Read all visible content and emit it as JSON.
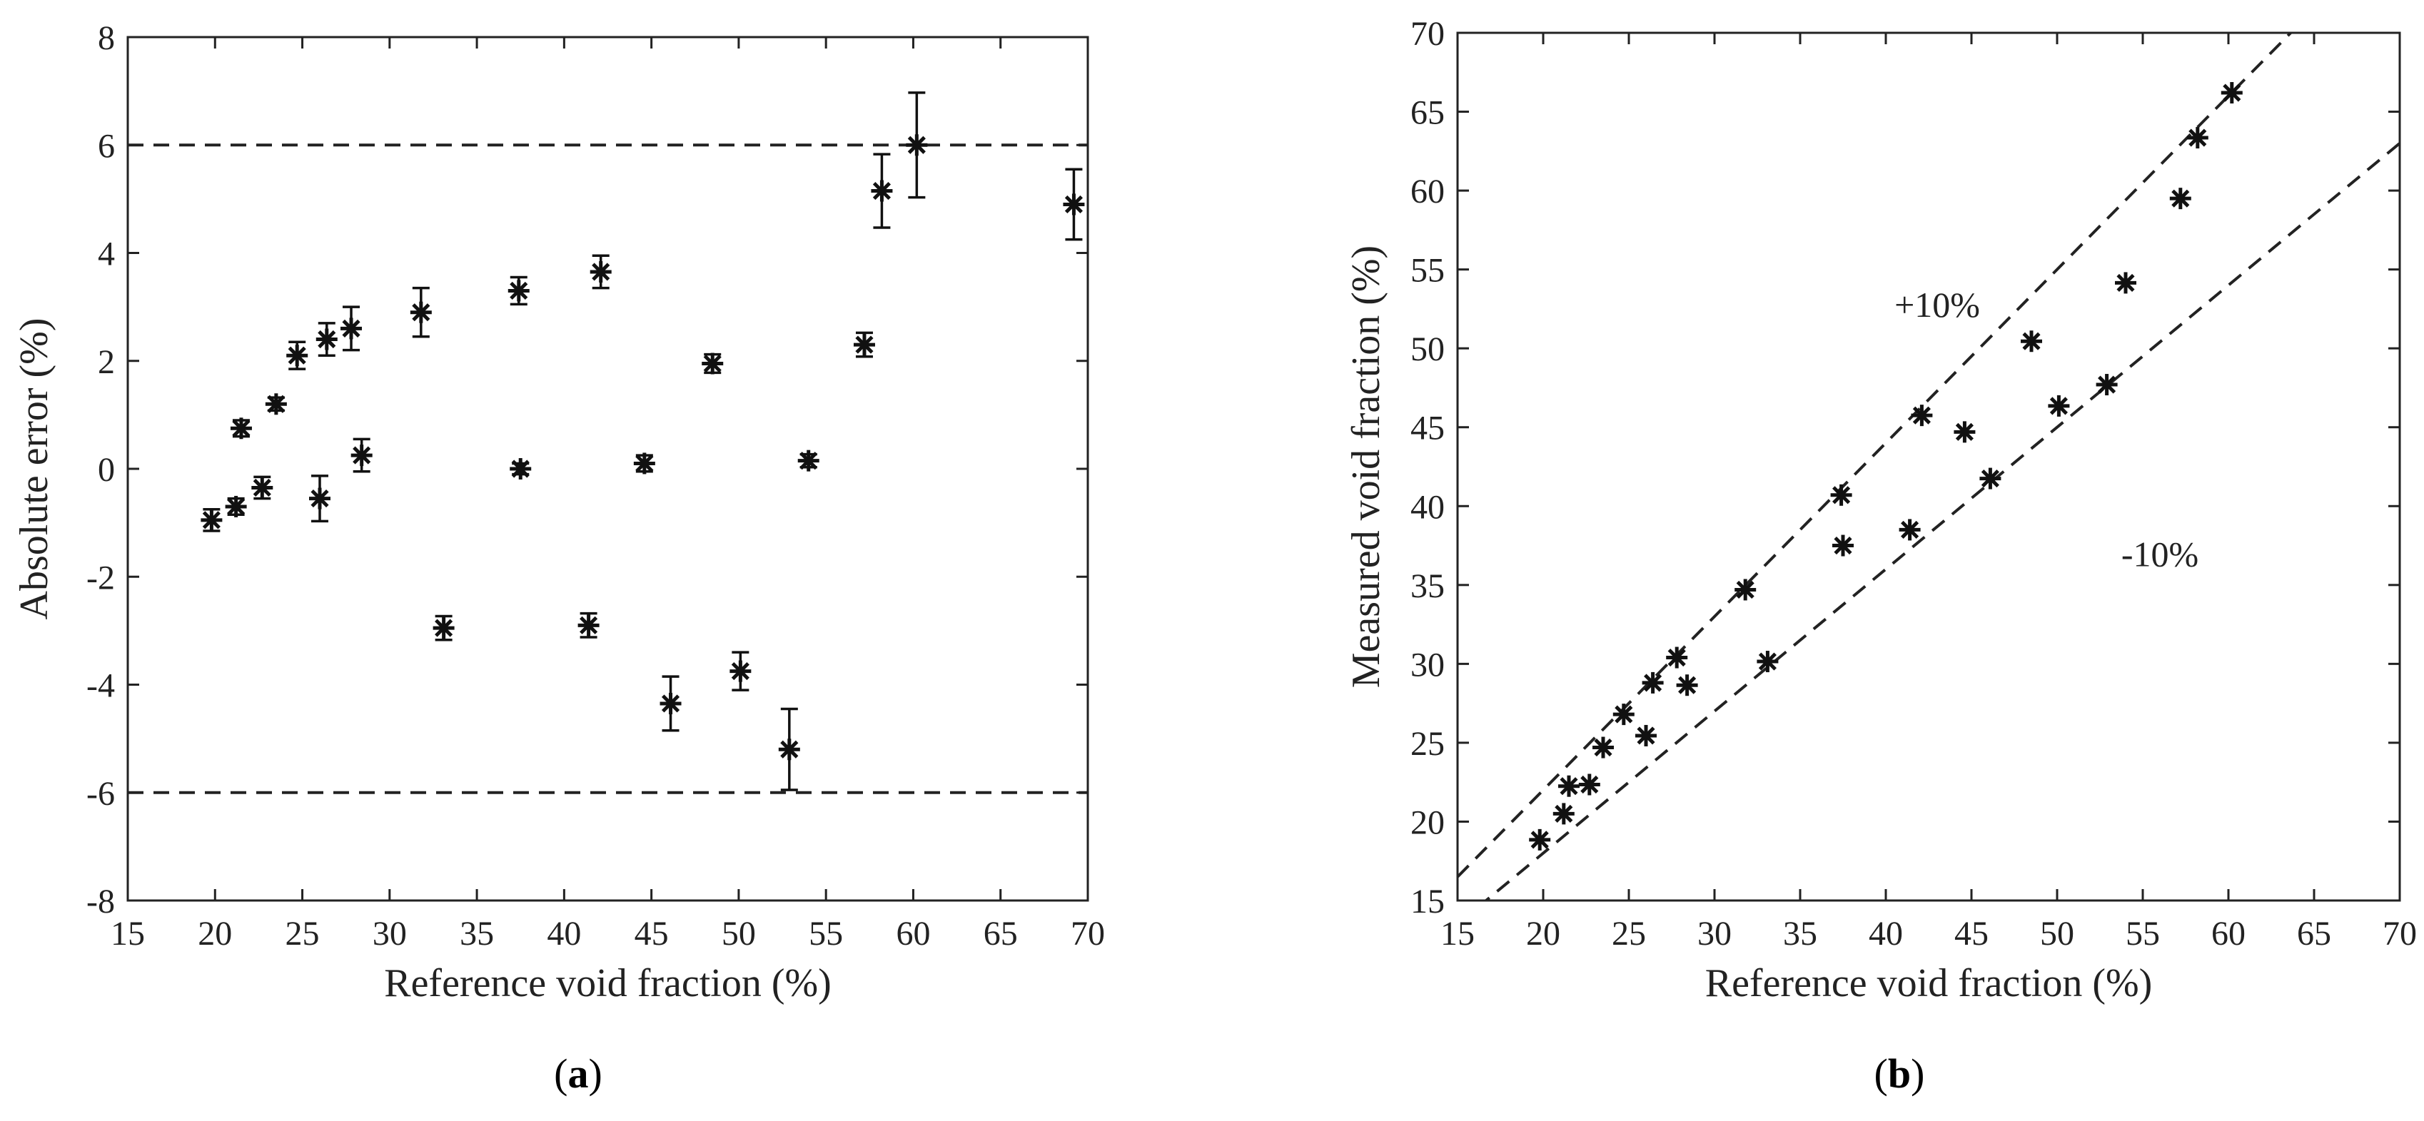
{
  "chart_data": [
    {
      "panel_label": "(a)",
      "panel_letter": "a",
      "type": "scatter",
      "xlabel": "Reference void fraction (%)",
      "ylabel": "Absolute error  (%)",
      "xlim": [
        15,
        70
      ],
      "ylim": [
        -8,
        8
      ],
      "xticks": [
        15,
        20,
        25,
        30,
        35,
        40,
        45,
        50,
        55,
        60,
        65,
        70
      ],
      "yticks": [
        -8,
        -6,
        -4,
        -2,
        0,
        2,
        4,
        6,
        8
      ],
      "grid": false,
      "reference_lines": [
        6,
        -6
      ],
      "points": [
        {
          "x": 19.8,
          "y": -0.95,
          "err": 0.2
        },
        {
          "x": 21.2,
          "y": -0.7,
          "err": 0.15
        },
        {
          "x": 21.5,
          "y": 0.75,
          "err": 0.15
        },
        {
          "x": 22.7,
          "y": -0.35,
          "err": 0.2
        },
        {
          "x": 23.5,
          "y": 1.2,
          "err": 0.12
        },
        {
          "x": 24.7,
          "y": 2.1,
          "err": 0.25
        },
        {
          "x": 26.0,
          "y": -0.55,
          "err": 0.42
        },
        {
          "x": 26.4,
          "y": 2.4,
          "err": 0.3
        },
        {
          "x": 27.8,
          "y": 2.6,
          "err": 0.4
        },
        {
          "x": 28.4,
          "y": 0.25,
          "err": 0.3
        },
        {
          "x": 31.8,
          "y": 2.9,
          "err": 0.45
        },
        {
          "x": 33.1,
          "y": -2.95,
          "err": 0.22
        },
        {
          "x": 37.4,
          "y": 3.3,
          "err": 0.25
        },
        {
          "x": 37.5,
          "y": 0.0,
          "err": 0.1
        },
        {
          "x": 41.4,
          "y": -2.9,
          "err": 0.22
        },
        {
          "x": 42.1,
          "y": 3.65,
          "err": 0.3
        },
        {
          "x": 44.6,
          "y": 0.1,
          "err": 0.15
        },
        {
          "x": 46.1,
          "y": -4.35,
          "err": 0.5
        },
        {
          "x": 48.5,
          "y": 1.95,
          "err": 0.17
        },
        {
          "x": 50.1,
          "y": -3.75,
          "err": 0.35
        },
        {
          "x": 52.9,
          "y": -5.2,
          "err": 0.75
        },
        {
          "x": 54.0,
          "y": 0.15,
          "err": 0.12
        },
        {
          "x": 57.2,
          "y": 2.3,
          "err": 0.22
        },
        {
          "x": 58.2,
          "y": 5.15,
          "err": 0.68
        },
        {
          "x": 60.2,
          "y": 6.0,
          "err": 0.97
        },
        {
          "x": 69.2,
          "y": 4.9,
          "err": 0.65
        }
      ]
    },
    {
      "panel_label": "(b)",
      "panel_letter": "b",
      "type": "scatter",
      "xlabel": "Reference void fraction (%)",
      "ylabel": "Measured void fraction (%)",
      "xlim": [
        15,
        70
      ],
      "ylim": [
        15,
        70
      ],
      "xticks": [
        15,
        20,
        25,
        30,
        35,
        40,
        45,
        50,
        55,
        60,
        65,
        70
      ],
      "yticks": [
        15,
        20,
        25,
        30,
        35,
        40,
        45,
        50,
        55,
        60,
        65,
        70
      ],
      "grid": false,
      "band_lines": [
        {
          "label": "+10%",
          "factor": 1.1,
          "label_x": 43,
          "label_y": 52
        },
        {
          "label": "-10%",
          "factor": 0.9,
          "label_x": 56,
          "label_y": 36.2
        }
      ],
      "points": [
        {
          "x": 19.8,
          "y": 18.85
        },
        {
          "x": 21.2,
          "y": 20.5
        },
        {
          "x": 21.5,
          "y": 22.25
        },
        {
          "x": 22.7,
          "y": 22.35
        },
        {
          "x": 23.5,
          "y": 24.7
        },
        {
          "x": 24.7,
          "y": 26.8
        },
        {
          "x": 26.0,
          "y": 25.45
        },
        {
          "x": 26.4,
          "y": 28.8
        },
        {
          "x": 27.8,
          "y": 30.4
        },
        {
          "x": 28.4,
          "y": 28.65
        },
        {
          "x": 31.8,
          "y": 34.7
        },
        {
          "x": 33.1,
          "y": 30.15
        },
        {
          "x": 37.4,
          "y": 40.7
        },
        {
          "x": 37.5,
          "y": 37.5
        },
        {
          "x": 41.4,
          "y": 38.5
        },
        {
          "x": 42.1,
          "y": 45.75
        },
        {
          "x": 44.6,
          "y": 44.7
        },
        {
          "x": 46.1,
          "y": 41.75
        },
        {
          "x": 48.5,
          "y": 50.45
        },
        {
          "x": 50.1,
          "y": 46.35
        },
        {
          "x": 52.9,
          "y": 47.7
        },
        {
          "x": 54.0,
          "y": 54.15
        },
        {
          "x": 57.2,
          "y": 59.5
        },
        {
          "x": 58.2,
          "y": 63.35
        },
        {
          "x": 60.2,
          "y": 66.2
        }
      ]
    }
  ]
}
